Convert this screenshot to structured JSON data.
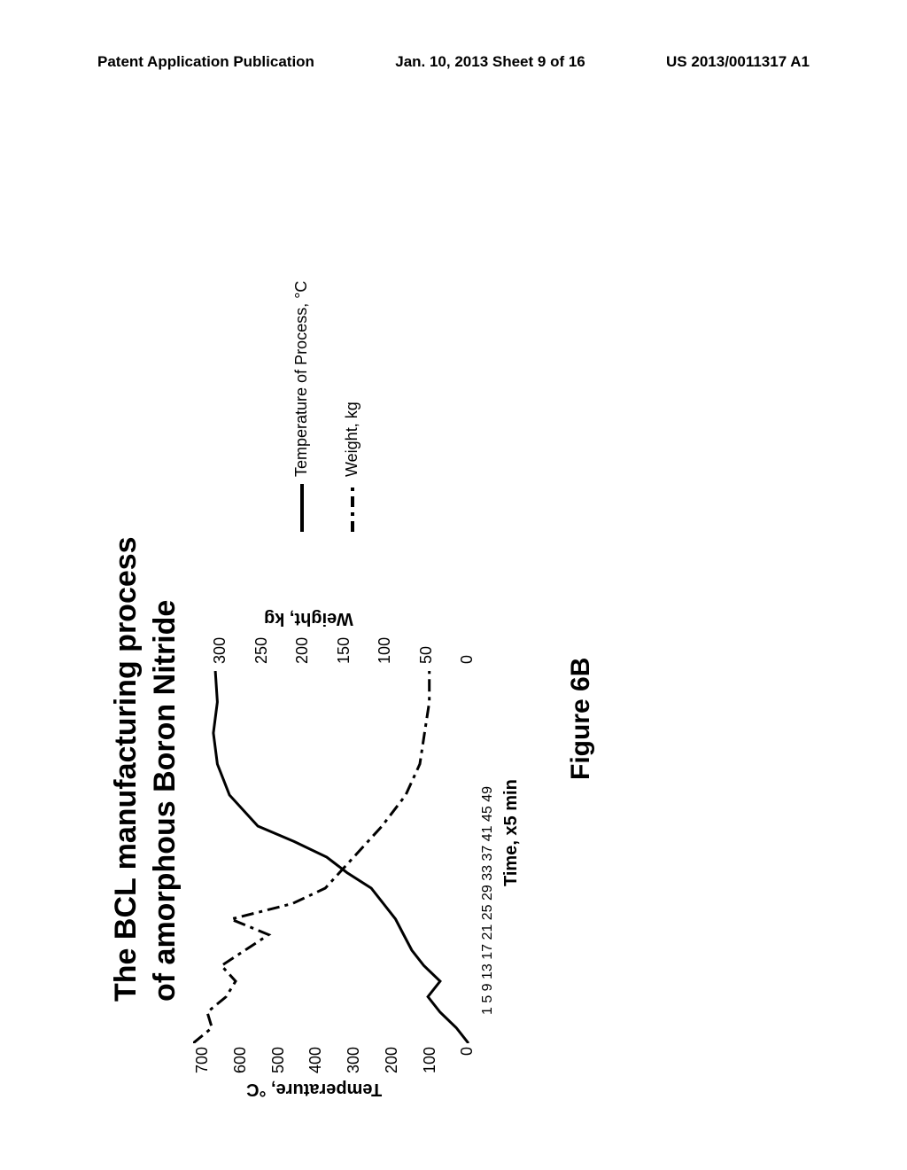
{
  "header": {
    "left": "Patent Application Publication",
    "center": "Jan. 10, 2013  Sheet 9 of 16",
    "right": "US 2013/0011317 A1"
  },
  "chart": {
    "title_line1": "The BCL manufacturing process",
    "title_line2": "of amorphous Boron Nitride",
    "type": "dual-axis-line",
    "xlabel": "Time, x5 min",
    "ylabel_left": "Temperature, °C",
    "ylabel_right": "Weight, kg",
    "x_ticks": "1  5  9  13 17 21 25 29 33 37 41 45 49",
    "y_left_ticks": [
      "700",
      "600",
      "500",
      "400",
      "300",
      "200",
      "100",
      "0"
    ],
    "y_right_ticks": [
      "300",
      "250",
      "200",
      "150",
      "100",
      "50",
      "0"
    ],
    "ylim_left": [
      0,
      700
    ],
    "ylim_right": [
      0,
      300
    ],
    "xlim": [
      1,
      49
    ],
    "background_color": "#ffffff",
    "line_color": "#000000",
    "series": [
      {
        "name": "Temperature of Process, °C",
        "style": "solid",
        "width": 3,
        "x": [
          1,
          3,
          5,
          7,
          9,
          11,
          13,
          15,
          17,
          19,
          21,
          23,
          25,
          27,
          29,
          33,
          37,
          41,
          45,
          49
        ],
        "y": [
          20,
          50,
          90,
          120,
          90,
          130,
          160,
          180,
          200,
          230,
          260,
          320,
          370,
          450,
          540,
          610,
          640,
          650,
          640,
          645
        ],
        "axis": "left"
      },
      {
        "name": "Weight, kg",
        "style": "dashdot",
        "width": 3,
        "x": [
          1,
          3,
          5,
          7,
          9,
          11,
          13,
          15,
          17,
          19,
          21,
          25,
          29,
          33,
          37,
          41,
          45,
          49
        ],
        "y": [
          300,
          280,
          285,
          265,
          255,
          270,
          245,
          220,
          260,
          195,
          160,
          130,
          100,
          75,
          60,
          55,
          50,
          50
        ],
        "axis": "right"
      }
    ],
    "legend": {
      "items": [
        {
          "style": "solid",
          "label": "Temperature of Process, °C"
        },
        {
          "style": "dashdot",
          "label": "Weight, kg"
        }
      ]
    }
  },
  "caption": "Figure 6B"
}
